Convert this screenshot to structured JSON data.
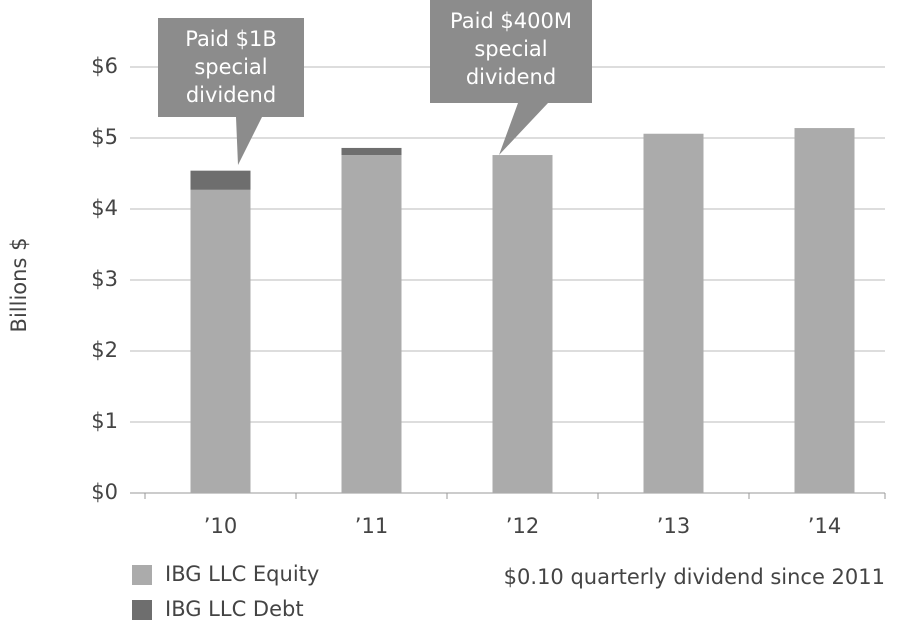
{
  "chart_data": {
    "type": "stacked_bar",
    "y_label": "Billions $",
    "categories": [
      "’10",
      "’11",
      "’12",
      "’13",
      "’14"
    ],
    "series": [
      {
        "name": "IBG LLC Equity",
        "color": "#ababab",
        "values": [
          4.27,
          4.76,
          4.76,
          5.06,
          5.14
        ]
      },
      {
        "name": "IBG LLC Debt",
        "color": "#6e6e6e",
        "values": [
          0.27,
          0.1,
          null,
          null,
          null
        ]
      }
    ],
    "ylim": [
      0,
      6.6
    ],
    "yticks": [
      {
        "value": 0,
        "label": "$0"
      },
      {
        "value": 1,
        "label": "$1"
      },
      {
        "value": 2,
        "label": "$2"
      },
      {
        "value": 3,
        "label": "$3"
      },
      {
        "value": 4,
        "label": "$4"
      },
      {
        "value": 5,
        "label": "$5"
      },
      {
        "value": 6,
        "label": "$6"
      }
    ],
    "grid": true,
    "callouts": [
      {
        "lines": [
          "Paid $1B",
          "special",
          "dividend"
        ]
      },
      {
        "lines": [
          "Paid $400M",
          "special",
          "dividend"
        ]
      }
    ],
    "note": "$0.10 quarterly dividend since 2011"
  }
}
